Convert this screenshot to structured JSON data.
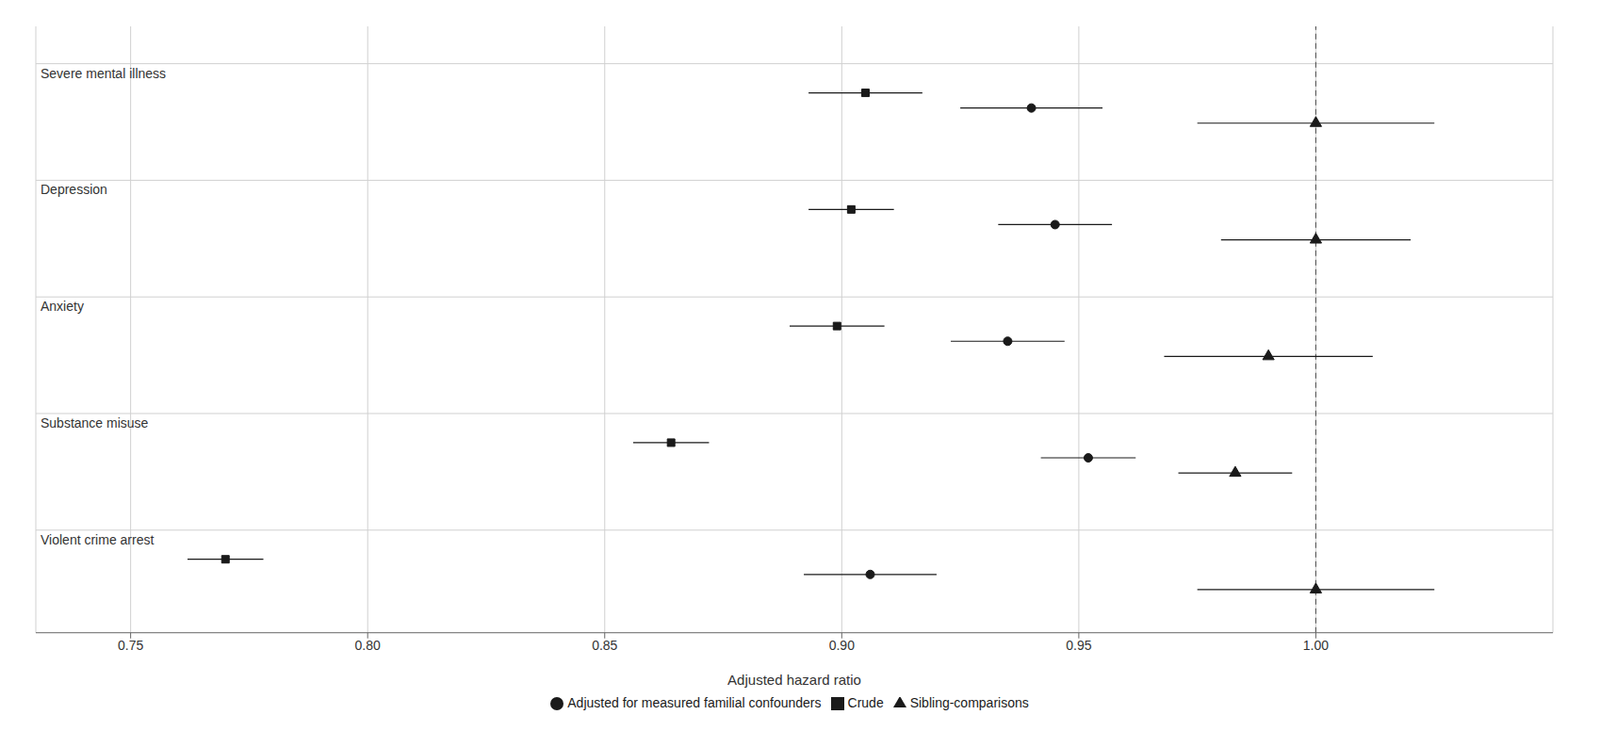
{
  "chart_data": {
    "type": "scatter",
    "categories": [
      "Severe mental illness",
      "Depression",
      "Anxiety",
      "Substance misuse",
      "Violent crime arrest"
    ],
    "series": [
      {
        "name": "Crude",
        "marker": "square",
        "values": [
          0.905,
          0.902,
          0.899,
          0.864,
          0.77
        ],
        "lo": [
          0.893,
          0.893,
          0.889,
          0.856,
          0.762
        ],
        "hi": [
          0.917,
          0.911,
          0.909,
          0.872,
          0.778
        ]
      },
      {
        "name": "Adjusted for measured familial confounders",
        "marker": "circle",
        "values": [
          0.94,
          0.945,
          0.935,
          0.952,
          0.906
        ],
        "lo": [
          0.925,
          0.933,
          0.923,
          0.942,
          0.892
        ],
        "hi": [
          0.955,
          0.957,
          0.947,
          0.962,
          0.92
        ]
      },
      {
        "name": "Sibling-comparisons",
        "marker": "triangle",
        "values": [
          1.0,
          1.0,
          0.99,
          0.983,
          1.0
        ],
        "lo": [
          0.975,
          0.98,
          0.968,
          0.971,
          0.975
        ],
        "hi": [
          1.025,
          1.02,
          1.012,
          0.995,
          1.025
        ]
      }
    ],
    "color": "#1a1a1a",
    "xlim": [
      0.73,
      1.05
    ],
    "xticks": [
      0.75,
      {
        "value": 0.8,
        "label": "0.80"
      },
      0.85,
      {
        "value": 0.9,
        "label": "0.90"
      },
      0.95,
      {
        "value": 1.0,
        "label": "1.00"
      }
    ],
    "xlabel": "Adjusted hazard ratio",
    "ref_line": 1.0,
    "grid": true,
    "legend": "bottom"
  }
}
